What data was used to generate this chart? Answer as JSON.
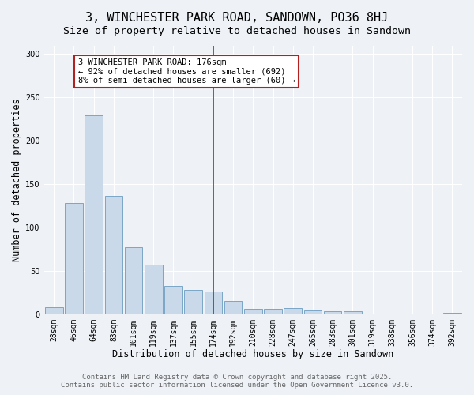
{
  "title": "3, WINCHESTER PARK ROAD, SANDOWN, PO36 8HJ",
  "subtitle": "Size of property relative to detached houses in Sandown",
  "xlabel": "Distribution of detached houses by size in Sandown",
  "ylabel": "Number of detached properties",
  "categories": [
    "28sqm",
    "46sqm",
    "64sqm",
    "83sqm",
    "101sqm",
    "119sqm",
    "137sqm",
    "155sqm",
    "174sqm",
    "192sqm",
    "210sqm",
    "228sqm",
    "247sqm",
    "265sqm",
    "283sqm",
    "301sqm",
    "319sqm",
    "338sqm",
    "356sqm",
    "374sqm",
    "392sqm"
  ],
  "values": [
    8,
    128,
    229,
    136,
    77,
    57,
    33,
    28,
    26,
    15,
    6,
    6,
    7,
    4,
    3,
    3,
    1,
    0,
    1,
    0,
    2
  ],
  "bar_color": "#c9d9ea",
  "bar_edge_color": "#6a9cc0",
  "vline_x_index": 8,
  "vline_color": "#b22020",
  "annotation_text": "3 WINCHESTER PARK ROAD: 176sqm\n← 92% of detached houses are smaller (692)\n8% of semi-detached houses are larger (60) →",
  "annotation_box_color": "#b22020",
  "ylim": [
    0,
    310
  ],
  "yticks": [
    0,
    50,
    100,
    150,
    200,
    250,
    300
  ],
  "footer_line1": "Contains HM Land Registry data © Crown copyright and database right 2025.",
  "footer_line2": "Contains public sector information licensed under the Open Government Licence v3.0.",
  "bg_color": "#eef2f7",
  "plot_bg_color": "#eef2f7",
  "title_fontsize": 11,
  "subtitle_fontsize": 9.5,
  "tick_fontsize": 7,
  "label_fontsize": 8.5,
  "footer_fontsize": 6.5
}
